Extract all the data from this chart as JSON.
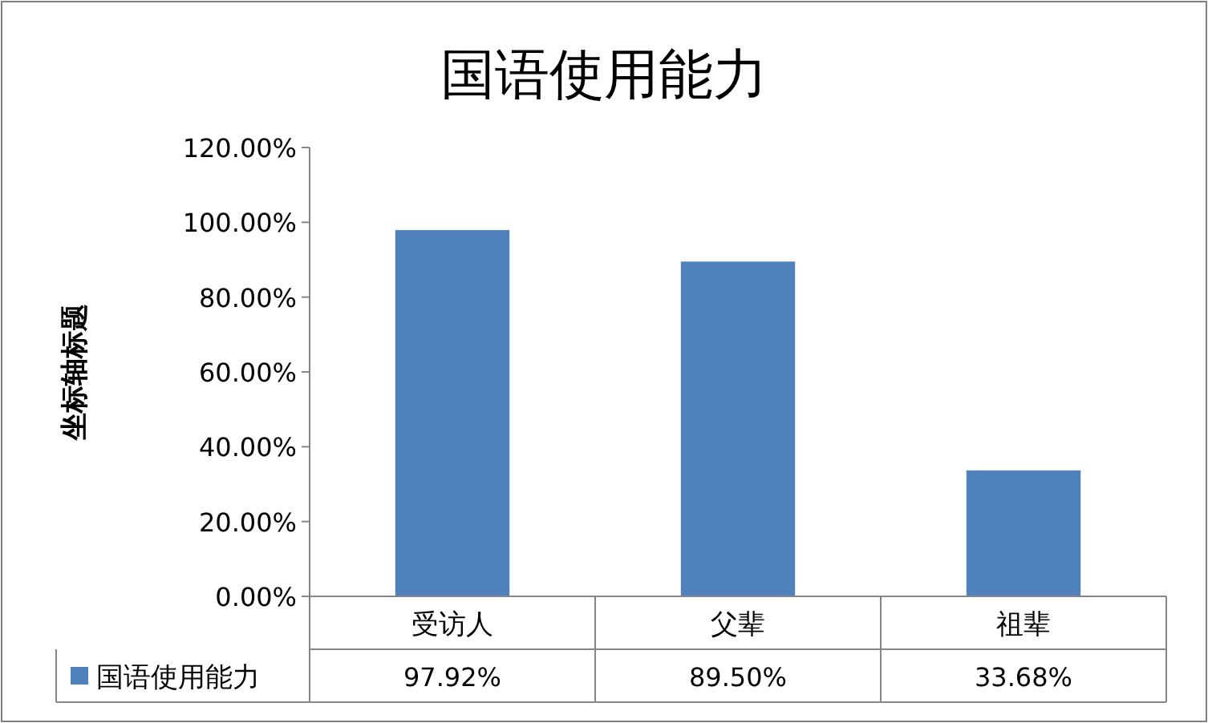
{
  "chart_data": {
    "type": "bar",
    "title": "国语使用能力",
    "ylabel": "坐标轴标题",
    "categories": [
      "受访人",
      "父辈",
      "祖辈"
    ],
    "series": [
      {
        "name": "国语使用能力",
        "color": "#4f81bd",
        "values": [
          97.92,
          89.5,
          33.68
        ],
        "value_labels": [
          "97.92%",
          "89.50%",
          "33.68%"
        ]
      }
    ],
    "ylim": [
      0,
      120
    ],
    "yticks": [
      {
        "value": 0,
        "label": "0.00%"
      },
      {
        "value": 20,
        "label": "20.00%"
      },
      {
        "value": 40,
        "label": "40.00%"
      },
      {
        "value": 60,
        "label": "60.00%"
      },
      {
        "value": 80,
        "label": "80.00%"
      },
      {
        "value": 100,
        "label": "100.00%"
      },
      {
        "value": 120,
        "label": "120.00%"
      }
    ],
    "legend": "bottom"
  }
}
